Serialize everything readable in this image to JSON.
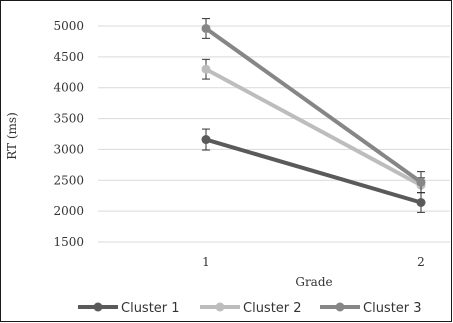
{
  "chart_data": {
    "type": "line",
    "title": "",
    "xlabel": "Grade",
    "ylabel": "RT (ms)",
    "x": [
      "1",
      "2"
    ],
    "ylim": [
      1500,
      5000
    ],
    "yticks": [
      "5000",
      "4500",
      "4000",
      "3500",
      "3000",
      "2500",
      "2000",
      "1500"
    ],
    "grid": true,
    "legend_position": "bottom",
    "series": [
      {
        "name": "Cluster 1",
        "color": "#5a5a5a",
        "values": [
          3160,
          2140
        ],
        "error": [
          170,
          160
        ]
      },
      {
        "name": "Cluster 2",
        "color": "#bdbdbd",
        "values": [
          4300,
          2420
        ],
        "error": [
          160,
          120
        ]
      },
      {
        "name": "Cluster 3",
        "color": "#868686",
        "values": [
          4960,
          2470
        ],
        "error": [
          160,
          170
        ]
      }
    ]
  }
}
